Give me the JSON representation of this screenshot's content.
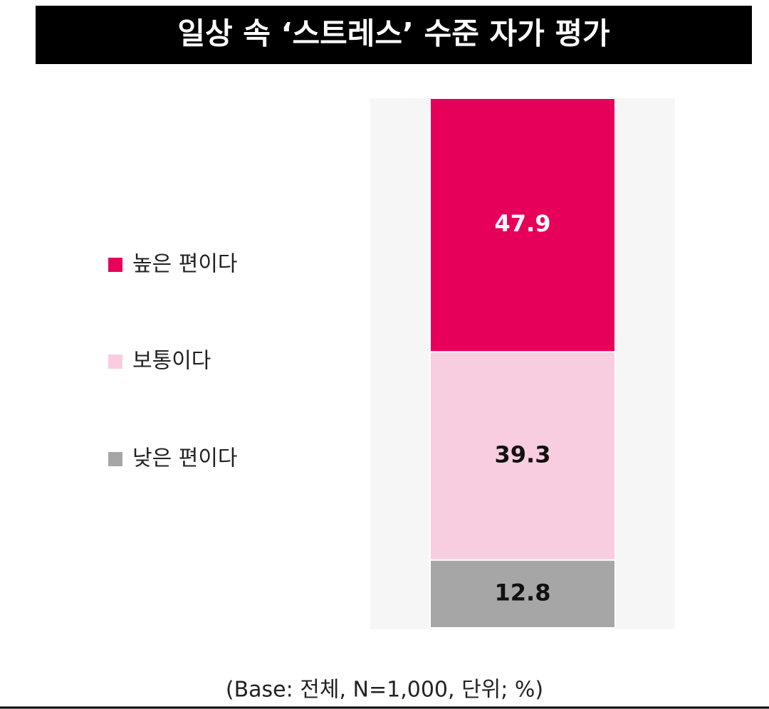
{
  "chart_data": {
    "type": "stacked-bar",
    "title": "일상 속 ‘스트레스’ 수준 자가 평가",
    "categories": [
      null
    ],
    "series": [
      {
        "name": "높은 편이다",
        "color": "#e6005a",
        "values": [
          47.9
        ]
      },
      {
        "name": "보통이다",
        "color": "#f9cde0",
        "values": [
          39.3
        ]
      },
      {
        "name": "낮은 편이다",
        "color": "#a6a6a6",
        "values": [
          12.8
        ]
      }
    ],
    "legend": "left",
    "footnote": "(Base: 전체, N=1,000, 단위; %)"
  }
}
